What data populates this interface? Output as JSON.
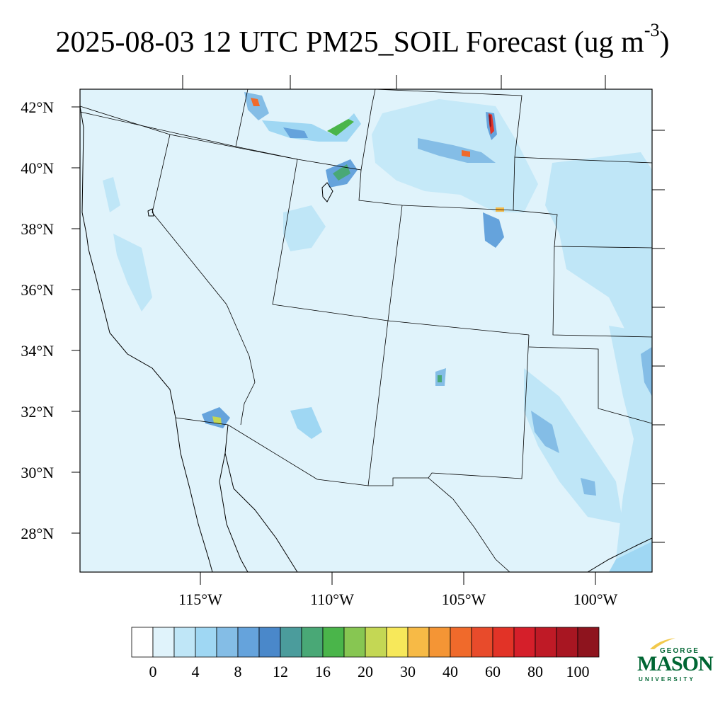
{
  "title": {
    "main": "2025-08-03 12 UTC PM25_SOIL Forecast (ug m",
    "superscript": "-3",
    "closing": ")"
  },
  "map": {
    "lat_labels": [
      "42°N",
      "40°N",
      "38°N",
      "36°N",
      "34°N",
      "32°N",
      "30°N",
      "28°N"
    ],
    "lon_labels": [
      "115°W",
      "110°W",
      "105°W",
      "100°W"
    ],
    "background_color": "#e0f3fb",
    "boundary_color": "#000000"
  },
  "colorbar": {
    "colors": [
      "#ffffff",
      "#e0f3fb",
      "#bfe6f7",
      "#9fd7f3",
      "#84bde6",
      "#65a3dc",
      "#4a88ca",
      "#4b9c9c",
      "#49a876",
      "#4ab54a",
      "#87c652",
      "#c4d754",
      "#f7e85a",
      "#f7ba46",
      "#f49535",
      "#f06a2b",
      "#e84b2b",
      "#e23327",
      "#d51f2a",
      "#bf1a26",
      "#a81622",
      "#8e141e"
    ],
    "tick_labels": [
      "0",
      "4",
      "8",
      "12",
      "16",
      "20",
      "30",
      "40",
      "60",
      "80",
      "100"
    ]
  },
  "logo": {
    "line1": "GEORGE",
    "line2": "MASON",
    "line3": "UNIVERSITY",
    "color": "#006633",
    "accent_color": "#f2c94c"
  }
}
